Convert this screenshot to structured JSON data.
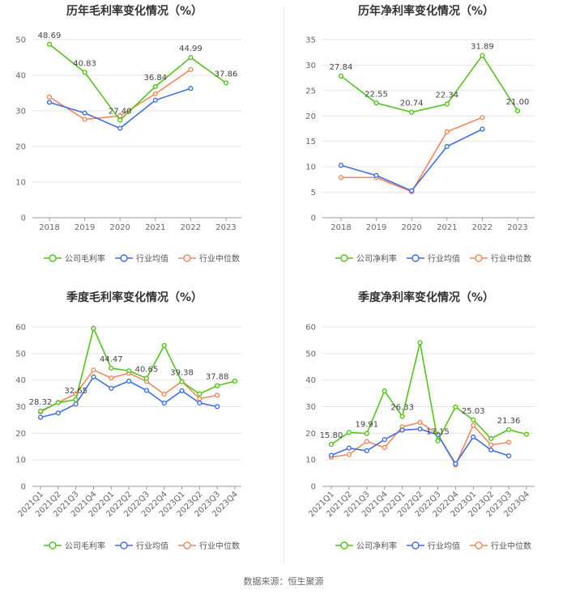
{
  "colors": {
    "company": "#52c41a",
    "avg": "#3f6fe8",
    "median": "#f5875c",
    "grid": "#e6e6e6",
    "axis": "#999999"
  },
  "legend": {
    "avg": "行业均值",
    "median": "行业中位数"
  },
  "source": "数据来源：恒生聚源",
  "chart_data": [
    {
      "type": "line",
      "title": "历年毛利率变化情况（%）",
      "company_label": "公司毛利率",
      "categories": [
        "2018",
        "2019",
        "2020",
        "2021",
        "2022",
        "2023"
      ],
      "ylim": [
        0,
        50
      ],
      "yticks": [
        0,
        10,
        20,
        30,
        40,
        50
      ],
      "grid": true,
      "legend_position": "bottom",
      "series": [
        {
          "name": "公司毛利率",
          "key": "company",
          "values": [
            48.69,
            40.83,
            27.4,
            36.84,
            44.99,
            37.86
          ]
        },
        {
          "name": "行业均值",
          "key": "avg",
          "values": [
            32.4,
            29.4,
            25.1,
            33.0,
            36.3,
            null
          ]
        },
        {
          "name": "行业中位数",
          "key": "median",
          "values": [
            33.9,
            27.6,
            28.6,
            34.8,
            41.6,
            null
          ]
        }
      ],
      "labels": [
        {
          "i": 0,
          "text": "48.69"
        },
        {
          "i": 1,
          "text": "40.83"
        },
        {
          "i": 2,
          "text": "27.40"
        },
        {
          "i": 3,
          "text": "36.84"
        },
        {
          "i": 4,
          "text": "44.99"
        },
        {
          "i": 5,
          "text": "37.86"
        }
      ]
    },
    {
      "type": "line",
      "title": "历年净利率变化情况（%）",
      "company_label": "公司净利率",
      "categories": [
        "2018",
        "2019",
        "2020",
        "2021",
        "2022",
        "2023"
      ],
      "ylim": [
        0,
        35
      ],
      "yticks": [
        0,
        5,
        10,
        15,
        20,
        25,
        30,
        35
      ],
      "grid": true,
      "legend_position": "bottom",
      "series": [
        {
          "name": "公司净利率",
          "key": "company",
          "values": [
            27.84,
            22.55,
            20.74,
            22.34,
            31.89,
            21.0
          ]
        },
        {
          "name": "行业均值",
          "key": "avg",
          "values": [
            10.3,
            8.3,
            5.3,
            14.0,
            17.4,
            null
          ]
        },
        {
          "name": "行业中位数",
          "key": "median",
          "values": [
            7.9,
            7.9,
            5.1,
            16.9,
            19.7,
            null
          ]
        }
      ],
      "labels": [
        {
          "i": 0,
          "text": "27.84"
        },
        {
          "i": 1,
          "text": "22.55"
        },
        {
          "i": 2,
          "text": "20.74"
        },
        {
          "i": 3,
          "text": "22.34"
        },
        {
          "i": 4,
          "text": "31.89"
        },
        {
          "i": 5,
          "text": "21.00"
        }
      ]
    },
    {
      "type": "line",
      "title": "季度毛利率变化情况（%）",
      "company_label": "公司毛利率",
      "categories": [
        "2021Q1",
        "2021Q2",
        "2021Q3",
        "2021Q4",
        "2022Q1",
        "2022Q2",
        "2022Q3",
        "2022Q4",
        "2023Q1",
        "2023Q2",
        "2023Q3",
        "2023Q4"
      ],
      "ylim": [
        0,
        60
      ],
      "yticks": [
        0,
        10,
        20,
        30,
        40,
        50,
        60
      ],
      "grid": true,
      "legend_position": "bottom",
      "rotate_x_labels": true,
      "series": [
        {
          "name": "公司毛利率",
          "key": "company",
          "values": [
            28.32,
            31.5,
            32.65,
            59.5,
            44.47,
            43.5,
            40.65,
            53.0,
            39.38,
            34.8,
            37.88,
            39.6
          ]
        },
        {
          "name": "行业均值",
          "key": "avg",
          "values": [
            26.0,
            27.6,
            31.0,
            41.2,
            36.9,
            39.6,
            36.1,
            31.3,
            36.0,
            31.4,
            30.0,
            null
          ]
        },
        {
          "name": "行业中位数",
          "key": "median",
          "values": [
            28.0,
            31.6,
            34.8,
            43.8,
            40.8,
            42.6,
            39.5,
            34.7,
            39.5,
            33.0,
            34.3,
            null
          ]
        }
      ],
      "labels": [
        {
          "i": 0,
          "text": "28.32"
        },
        {
          "i": 2,
          "text": "32.65"
        },
        {
          "i": 4,
          "text": "44.47"
        },
        {
          "i": 6,
          "text": "40.65"
        },
        {
          "i": 8,
          "text": "39.38"
        },
        {
          "i": 10,
          "text": "37.88"
        }
      ]
    },
    {
      "type": "line",
      "title": "季度净利率变化情况（%）",
      "company_label": "公司净利率",
      "categories": [
        "2021Q1",
        "2021Q2",
        "2021Q3",
        "2021Q4",
        "2022Q1",
        "2022Q2",
        "2022Q3",
        "2022Q4",
        "2023Q1",
        "2023Q2",
        "2023Q3",
        "2023Q4"
      ],
      "ylim": [
        0,
        60
      ],
      "yticks": [
        0,
        10,
        20,
        30,
        40,
        50,
        60
      ],
      "grid": true,
      "legend_position": "bottom",
      "rotate_x_labels": true,
      "series": [
        {
          "name": "公司净利率",
          "key": "company",
          "values": [
            15.8,
            20.3,
            19.91,
            35.9,
            26.33,
            54.1,
            17.15,
            29.9,
            25.03,
            18.0,
            21.36,
            19.6
          ]
        },
        {
          "name": "行业均值",
          "key": "avg",
          "values": [
            11.7,
            14.4,
            13.4,
            17.6,
            21.2,
            21.6,
            19.4,
            8.5,
            18.6,
            13.7,
            11.5,
            null
          ]
        },
        {
          "name": "行业中位数",
          "key": "median",
          "values": [
            11.0,
            12.0,
            16.9,
            14.6,
            22.4,
            24.1,
            19.7,
            8.0,
            23.0,
            15.6,
            16.6,
            null
          ]
        }
      ],
      "labels": [
        {
          "i": 0,
          "text": "15.80"
        },
        {
          "i": 2,
          "text": "19.91"
        },
        {
          "i": 4,
          "text": "26.33"
        },
        {
          "i": 6,
          "text": "17.15"
        },
        {
          "i": 8,
          "text": "25.03"
        },
        {
          "i": 10,
          "text": "21.36"
        }
      ]
    }
  ]
}
